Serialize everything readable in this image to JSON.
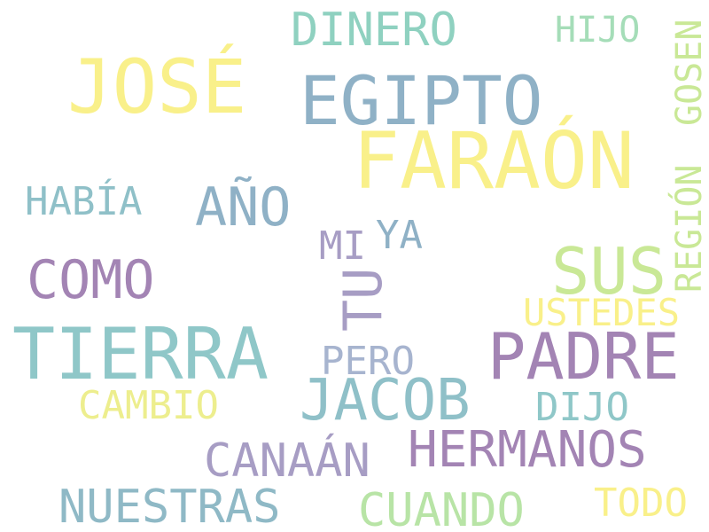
{
  "words": [
    {
      "text": "DINERO",
      "color": "#8fd1c0"
    },
    {
      "text": "HIJO",
      "color": "#a5ddb8"
    },
    {
      "text": "JOSÉ",
      "color": "#f9f08a"
    },
    {
      "text": "EGIPTO",
      "color": "#8fb1c6"
    },
    {
      "text": "FARAÓN",
      "color": "#f9f08a"
    },
    {
      "text": "HABÍA",
      "color": "#8fc0c8"
    },
    {
      "text": "AÑO",
      "color": "#8fb1c6"
    },
    {
      "text": "MI",
      "color": "#a79dc4"
    },
    {
      "text": "YA",
      "color": "#8fb1c6"
    },
    {
      "text": "COMO",
      "color": "#a384b4"
    },
    {
      "text": "SUS",
      "color": "#c9e896"
    },
    {
      "text": "TU",
      "color": "#a79dc4"
    },
    {
      "text": "GOSEN",
      "color": "#c9e896"
    },
    {
      "text": "REGIÓN",
      "color": "#c9e896"
    },
    {
      "text": "USTEDES",
      "color": "#f9f08a"
    },
    {
      "text": "TIERRA",
      "color": "#8fc7c8"
    },
    {
      "text": "PADRE",
      "color": "#a384b4"
    },
    {
      "text": "PERO",
      "color": "#a7b4cf"
    },
    {
      "text": "JACOB",
      "color": "#8fc0c8"
    },
    {
      "text": "CAMBIO",
      "color": "#edee8e"
    },
    {
      "text": "DIJO",
      "color": "#8fc7c8"
    },
    {
      "text": "HERMANOS",
      "color": "#a384b4"
    },
    {
      "text": "CANAÁN",
      "color": "#a79dc4"
    },
    {
      "text": "NUESTRAS",
      "color": "#8fb9c6"
    },
    {
      "text": "CUANDO",
      "color": "#b8e4a6"
    },
    {
      "text": "TODO",
      "color": "#f9f08a"
    }
  ]
}
